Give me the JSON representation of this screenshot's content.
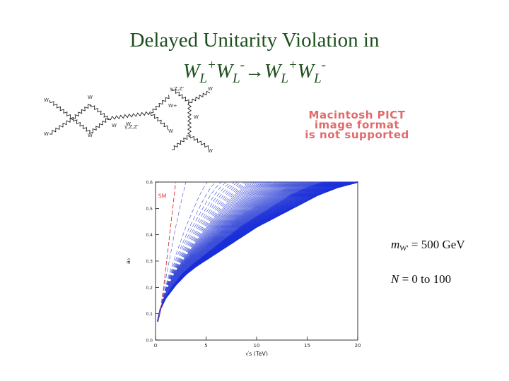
{
  "slide": {
    "title_line1": "Delayed Unitarity Violation in",
    "process": {
      "w": "W",
      "l": "L",
      "plus": "+",
      "minus": "-",
      "arrow": "→"
    }
  },
  "diagram": {
    "placeholder_lines": [
      "Macintosh PICT",
      "image format",
      "is not supported"
    ],
    "labels": [
      "W",
      "W",
      "W",
      "W",
      "W",
      "W",
      "γ,Z,Z'",
      "W+",
      "W",
      "γ,Z,Z'",
      "W",
      "W",
      "W"
    ]
  },
  "annotations": {
    "mass_symbol": "m",
    "mass_sub": "W'",
    "mass_value": "= 500 GeV",
    "n_symbol": "N",
    "n_value": "= 0 to 100"
  },
  "chart_data": {
    "type": "line",
    "xlabel": "√s (TeV)",
    "ylabel": "a₀",
    "xlim": [
      0,
      20
    ],
    "ylim": [
      0,
      0.6
    ],
    "xticks": [
      0,
      5,
      10,
      15,
      20
    ],
    "yticks": [
      0.0,
      0.1,
      0.2,
      0.3,
      0.4,
      0.5,
      0.6
    ],
    "ytick_labels": [
      "0.0",
      "0.1",
      "0.2",
      "0.3",
      "0.4",
      "0.5",
      "0.6"
    ],
    "annotation": "SM",
    "grid": false,
    "series_count": 101,
    "sm_curve": {
      "name": "SM",
      "color": "#e04040",
      "x": [
        0.2,
        0.5,
        0.8,
        1.1,
        1.4,
        1.7,
        2.0
      ],
      "y": [
        0.07,
        0.12,
        0.2,
        0.3,
        0.4,
        0.5,
        0.6
      ]
    },
    "kk_curve_n0": {
      "color": "#3a4cd8",
      "x": [
        0.2,
        0.6,
        1.0,
        1.5,
        2.0,
        2.5,
        3.0
      ],
      "y": [
        0.07,
        0.14,
        0.23,
        0.33,
        0.43,
        0.52,
        0.6
      ]
    },
    "kk_curve_n100": {
      "color": "#1a2fd8",
      "x": [
        0.2,
        0.5,
        1.0,
        2.0,
        3.0,
        4.0,
        6.0,
        8.0,
        10.0,
        12.0,
        14.0,
        16.0,
        18.0,
        20.0
      ],
      "y": [
        0.07,
        0.12,
        0.16,
        0.21,
        0.25,
        0.28,
        0.33,
        0.38,
        0.43,
        0.47,
        0.51,
        0.55,
        0.58,
        0.6
      ]
    },
    "colors": {
      "sm": "#e04040",
      "kk": "#3a4cd8",
      "dense": "#1a2fd8"
    }
  }
}
